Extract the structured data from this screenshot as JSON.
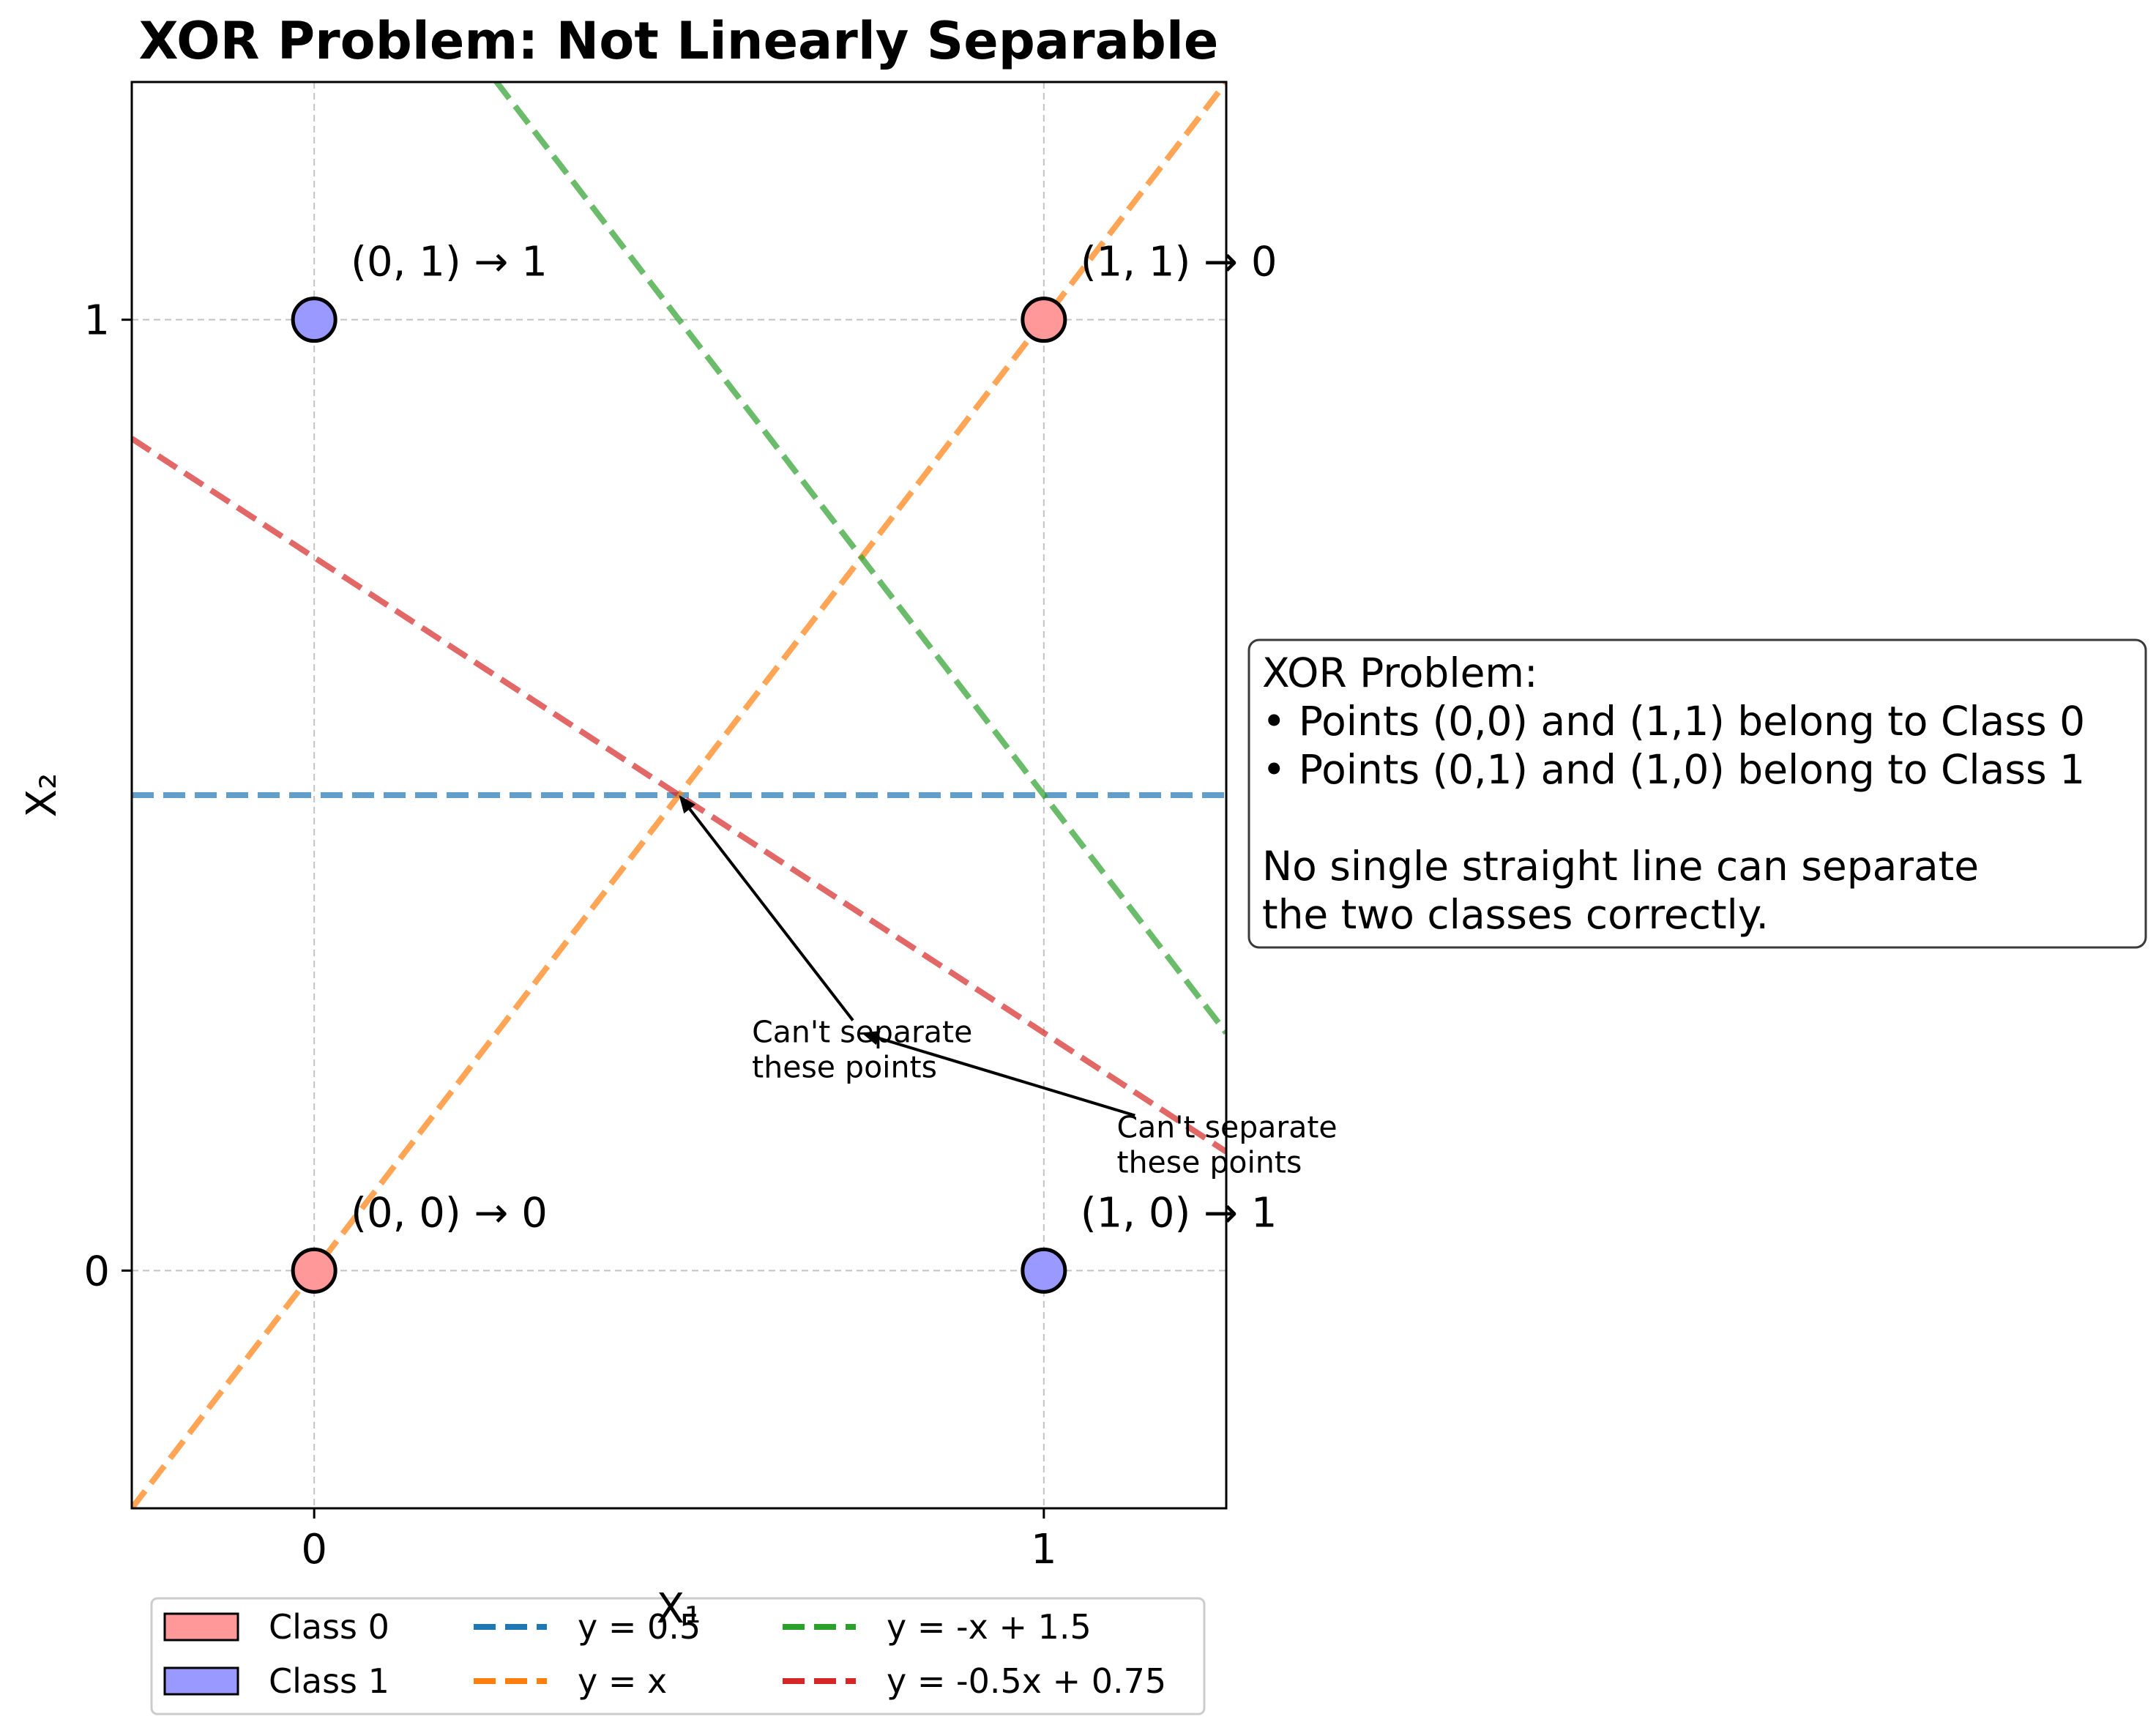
{
  "chart_data": {
    "type": "scatter",
    "title": "XOR Problem: Not Linearly Separable",
    "xlabel": "X₁",
    "ylabel": "X₂",
    "xlim": [
      -0.25,
      1.25
    ],
    "ylim": [
      -0.25,
      1.25
    ],
    "xticks": [
      0,
      1
    ],
    "yticks": [
      0,
      1
    ],
    "xtick_labels": [
      "0",
      "1"
    ],
    "ytick_labels": [
      "0",
      "1"
    ],
    "grid": true,
    "classes": [
      {
        "name": "Class 0",
        "color": "#ff9999"
      },
      {
        "name": "Class 1",
        "color": "#9999ff"
      }
    ],
    "points": [
      {
        "x": 0,
        "y": 0,
        "class": 0,
        "label": "(0, 0) → 0"
      },
      {
        "x": 0,
        "y": 1,
        "class": 1,
        "label": "(0, 1) → 1"
      },
      {
        "x": 1,
        "y": 0,
        "class": 1,
        "label": "(1, 0) → 1"
      },
      {
        "x": 1,
        "y": 1,
        "class": 0,
        "label": "(1, 1) → 0"
      }
    ],
    "lines": [
      {
        "name": "y = 0.5",
        "slope": 0,
        "intercept": 0.5,
        "color": "#1f77b4"
      },
      {
        "name": "y = x",
        "slope": 1,
        "intercept": 0,
        "color": "#ff7f0e"
      },
      {
        "name": "y = -x + 1.5",
        "slope": -1,
        "intercept": 1.5,
        "color": "#2ca02c"
      },
      {
        "name": "y = -0.5x + 0.75",
        "slope": -0.5,
        "intercept": 0.75,
        "color": "#d62728"
      }
    ],
    "annotations": [
      {
        "text": "Can't separate\nthese points",
        "target": [
          0.5,
          0.5
        ],
        "text_at": [
          0.6,
          0.24
        ]
      },
      {
        "text": "Can't separate\nthese points",
        "target": [
          0.75,
          0.25
        ],
        "text_at": [
          1.1,
          0.14
        ]
      }
    ],
    "legend_placement": "bottom-center",
    "info_box": [
      "XOR Problem:",
      "• Points (0,0) and (1,1) belong to Class 0",
      "• Points (0,1) and (1,0) belong to Class 1",
      "",
      "No single straight line can separate",
      "the two classes correctly."
    ]
  }
}
